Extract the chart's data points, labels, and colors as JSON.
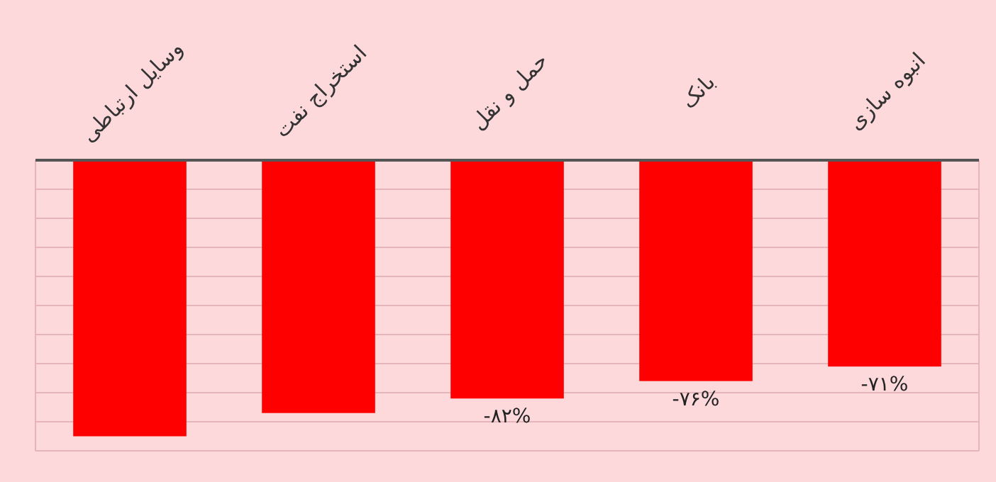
{
  "chart_data": {
    "type": "bar",
    "categories": [
      "وسایل ارتباطی",
      "استخراج نفت",
      "حمل و نقل",
      "بانک",
      "انبوه سازی"
    ],
    "values": [
      -95,
      -87,
      -82,
      -76,
      -71
    ],
    "value_labels": [
      null,
      null,
      "-۸۲%",
      "-۷۶%",
      "-۷۱%"
    ],
    "color": "#ff0000",
    "ylim": [
      -100,
      0
    ],
    "yticks": [
      {
        "value": -100,
        "label": null
      },
      {
        "value": -90,
        "label": null
      },
      {
        "value": -80,
        "label": null
      },
      {
        "value": -70,
        "label": null
      },
      {
        "value": -60,
        "label": null
      },
      {
        "value": -50,
        "label": null
      },
      {
        "value": -40,
        "label": null
      },
      {
        "value": -30,
        "label": null
      },
      {
        "value": -20,
        "label": null
      },
      {
        "value": -10,
        "label": null
      },
      {
        "value": 0,
        "label": null
      }
    ],
    "grid": "y"
  }
}
